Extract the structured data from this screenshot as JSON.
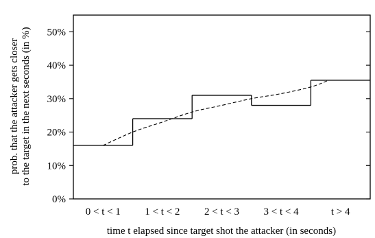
{
  "chart_data": {
    "type": "line",
    "title": "",
    "xlabel": "time t elapsed since target shot the attacker (in seconds)",
    "ylabel_line1": "prob. that the attacker gets closer",
    "ylabel_line2": "to the target in the next seconds (in %)",
    "categories": [
      "0 < t < 1",
      "1 < t < 2",
      "2 < t < 3",
      "3 < t < 4",
      "t > 4"
    ],
    "ylim": [
      0,
      55
    ],
    "yticks": [
      0,
      10,
      20,
      30,
      40,
      50
    ],
    "ytick_labels": [
      "0%",
      "10%",
      "20%",
      "30%",
      "40%",
      "50%"
    ],
    "grid": false,
    "series": [
      {
        "style": "solid-step",
        "values": [
          16,
          24,
          31,
          28,
          35.5
        ]
      },
      {
        "style": "dashed-trend",
        "x": [
          0.5,
          1.0,
          1.5,
          2.0,
          2.5,
          3.0,
          3.5,
          4.0,
          4.3
        ],
        "y": [
          16,
          20,
          23,
          26,
          28,
          30,
          31.5,
          33.5,
          35.5
        ]
      }
    ]
  }
}
